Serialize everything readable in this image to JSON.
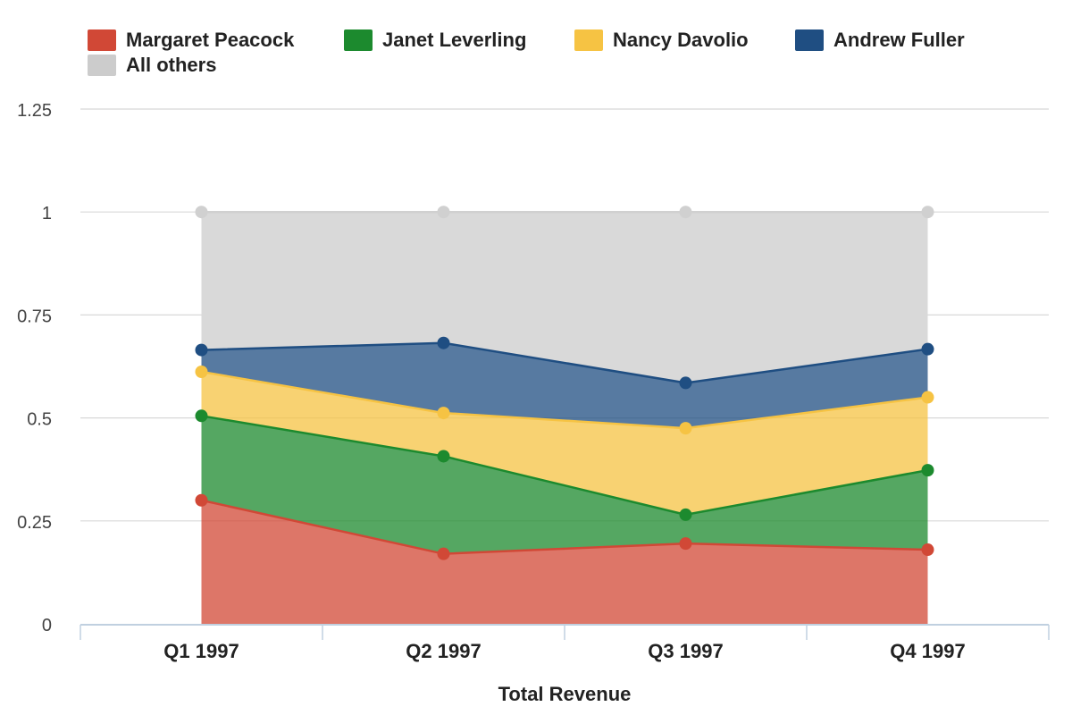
{
  "chart_data": {
    "type": "area",
    "stacked": true,
    "title": "",
    "xlabel": "Total Revenue",
    "ylabel": "",
    "ylim": [
      0,
      1.25
    ],
    "yticks": [
      0,
      0.25,
      0.5,
      0.75,
      1,
      1.25
    ],
    "ytick_labels": [
      "0",
      "0.25",
      "0.5",
      "0.75",
      "1",
      "1.25"
    ],
    "grid": true,
    "legend_position": "top-left",
    "categories": [
      "Q1 1997",
      "Q2 1997",
      "Q3 1997",
      "Q4 1997"
    ],
    "series": [
      {
        "name": "Margaret Peacock",
        "color": "#d14836",
        "values": [
          0.3,
          0.17,
          0.195,
          0.18
        ]
      },
      {
        "name": "Janet Leverling",
        "color": "#1c8a2e",
        "values": [
          0.205,
          0.237,
          0.07,
          0.193
        ]
      },
      {
        "name": "Nancy Davolio",
        "color": "#f6c343",
        "values": [
          0.107,
          0.105,
          0.21,
          0.177
        ]
      },
      {
        "name": "Andrew Fuller",
        "color": "#1f4e82",
        "values": [
          0.053,
          0.17,
          0.11,
          0.117
        ]
      },
      {
        "name": "All others",
        "color": "#cccccc",
        "values": [
          0.335,
          0.318,
          0.415,
          0.333
        ]
      }
    ]
  }
}
